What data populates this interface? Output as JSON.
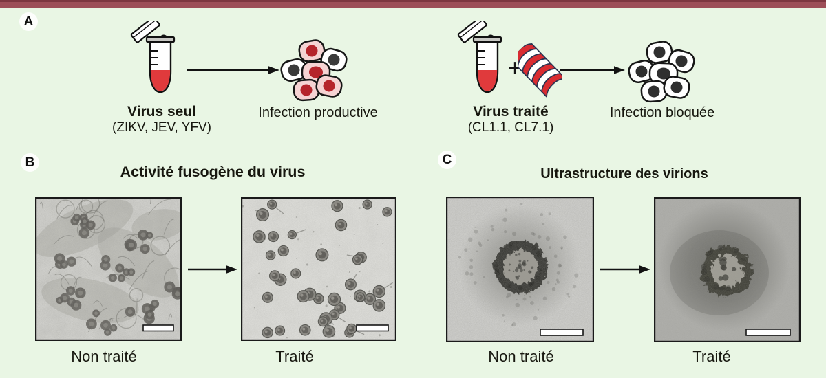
{
  "colors": {
    "top_bar": "#9d4e58",
    "top_bar_edge": "#7d3640",
    "background": "#e9f6e4",
    "sample_red": "#e03a3c",
    "helix_red": "#d92b31",
    "infected_cell_pink": "#f5d3d3",
    "infected_nucleus_red": "#b5242b",
    "cell_nucleus_dark": "#3a3a3a"
  },
  "panel_a": {
    "label": "A",
    "untreated": {
      "name": "Virus seul",
      "viruses": "(ZIKV, JEV, YFV)",
      "outcome": "Infection productive"
    },
    "plus_sign": "+",
    "treated": {
      "name": "Virus traité",
      "peptides": "(CL1.1, CL7.1)",
      "outcome": "Infection bloquée"
    }
  },
  "panel_b": {
    "label": "B",
    "title": "Activité fusogène du virus",
    "captions": [
      "Non traité",
      "Traité"
    ]
  },
  "panel_c": {
    "label": "C",
    "title": "Ultrastructure des virions",
    "captions": [
      "Non traité",
      "Traité"
    ]
  }
}
